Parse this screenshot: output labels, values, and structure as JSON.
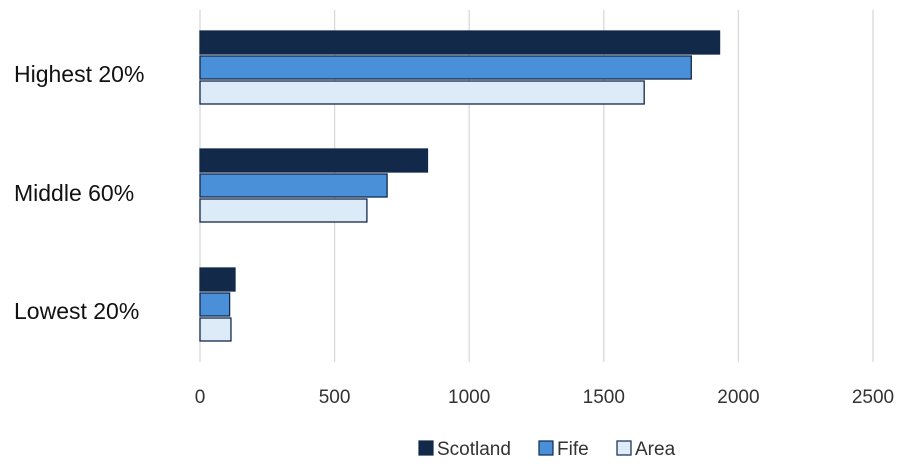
{
  "chart_data": {
    "type": "bar",
    "orientation": "horizontal",
    "categories": [
      "Highest 20%",
      "Middle 60%",
      "Lowest 20%"
    ],
    "series": [
      {
        "name": "Scotland",
        "color": "#12294a",
        "values": [
          1930,
          845,
          130
        ]
      },
      {
        "name": "Fife",
        "color": "#4a90d9",
        "values": [
          1825,
          695,
          110
        ]
      },
      {
        "name": "Area",
        "color": "#ddeaf7",
        "values": [
          1650,
          620,
          115
        ]
      }
    ],
    "xlim": [
      0,
      2500
    ],
    "xticks": [
      0,
      500,
      1000,
      1500,
      2000,
      2500
    ],
    "grid": true,
    "legend_position": "bottom"
  }
}
